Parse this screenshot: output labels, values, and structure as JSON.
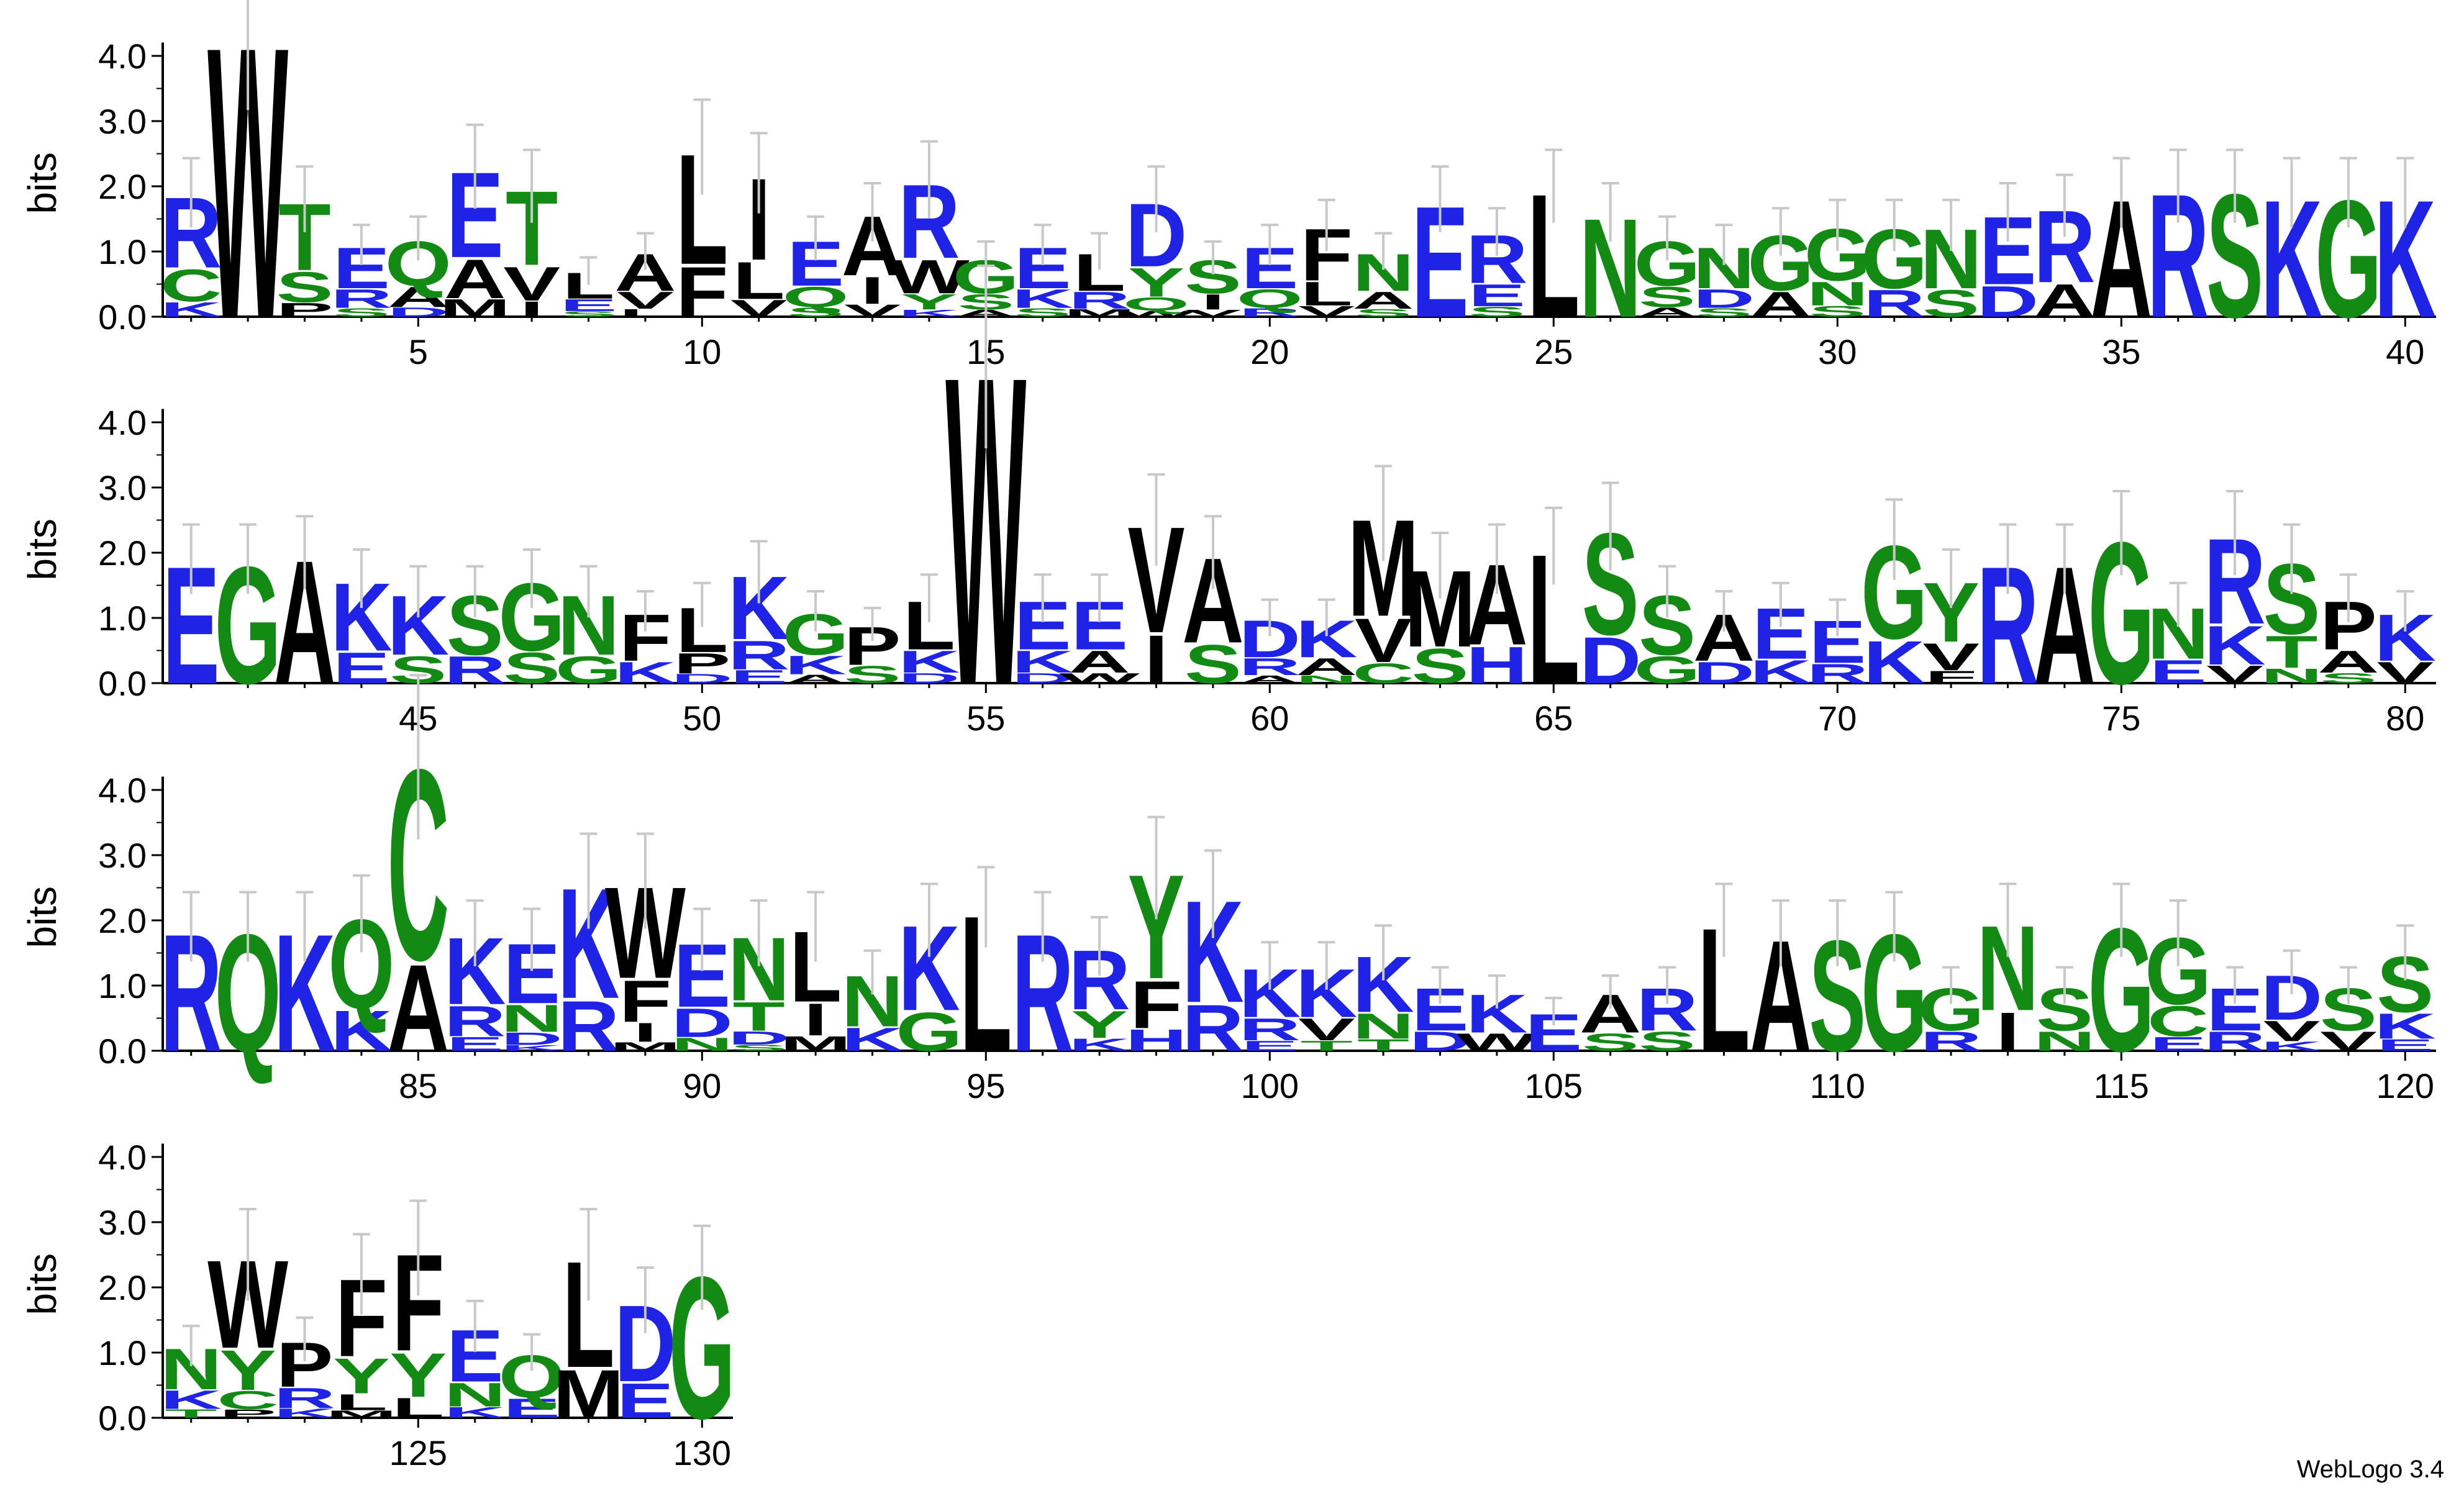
{
  "chart_data": {
    "type": "sequence-logo",
    "ylabel": "bits",
    "ylim": [
      0,
      4.3
    ],
    "yticks": [
      "0.0",
      "1.0",
      "2.0",
      "3.0",
      "4.0"
    ],
    "colors": {
      "hydrophilic_blue": "#1f23e6",
      "polar_green": "#138a13",
      "hydrophobic_black": "#000000",
      "errorbar": "#c8c8c8"
    },
    "rows": [
      {
        "start": 1,
        "end": 40,
        "ticks": [
          5,
          10,
          15,
          20,
          25,
          30,
          35,
          40
        ]
      },
      {
        "start": 41,
        "end": 80,
        "ticks": [
          45,
          50,
          55,
          60,
          65,
          70,
          75,
          80
        ]
      },
      {
        "start": 81,
        "end": 120,
        "ticks": [
          85,
          90,
          95,
          100,
          105,
          110,
          115,
          120
        ]
      },
      {
        "start": 121,
        "end": 130,
        "ticks": [
          125,
          130
        ]
      }
    ],
    "positions": [
      {
        "p": 1,
        "t": 1.9,
        "s": [
          "K",
          "C",
          "R"
        ]
      },
      {
        "p": 2,
        "t": 4.4,
        "s": [
          "W"
        ]
      },
      {
        "p": 3,
        "t": 1.8,
        "s": [
          "P",
          "S",
          "T"
        ]
      },
      {
        "p": 4,
        "t": 1.1,
        "s": [
          "S",
          "R",
          "E"
        ]
      },
      {
        "p": 5,
        "t": 1.2,
        "s": [
          "D",
          "A",
          "Q"
        ]
      },
      {
        "p": 6,
        "t": 2.3,
        "s": [
          "M",
          "A",
          "E"
        ]
      },
      {
        "p": 7,
        "t": 2.0,
        "s": [
          "I",
          "V",
          "T"
        ]
      },
      {
        "p": 8,
        "t": 0.7,
        "s": [
          "S",
          "E",
          "L"
        ]
      },
      {
        "p": 9,
        "t": 1.0,
        "s": [
          "L",
          "V",
          "A"
        ]
      },
      {
        "p": 10,
        "t": 2.6,
        "s": [
          "F",
          "L"
        ]
      },
      {
        "p": 11,
        "t": 2.2,
        "s": [
          "V",
          "L",
          "I"
        ]
      },
      {
        "p": 12,
        "t": 1.2,
        "s": [
          "S",
          "Q",
          "E"
        ]
      },
      {
        "p": 13,
        "t": 1.6,
        "s": [
          "V",
          "I",
          "A"
        ]
      },
      {
        "p": 14,
        "t": 2.1,
        "s": [
          "K",
          "Y",
          "W",
          "R"
        ]
      },
      {
        "p": 15,
        "t": 0.9,
        "s": [
          "A",
          "S",
          "G"
        ]
      },
      {
        "p": 16,
        "t": 1.1,
        "s": [
          "S",
          "K",
          "E"
        ]
      },
      {
        "p": 17,
        "t": 1.0,
        "s": [
          "M",
          "R",
          "L"
        ]
      },
      {
        "p": 18,
        "t": 1.8,
        "s": [
          "W",
          "Q",
          "Y",
          "D"
        ]
      },
      {
        "p": 19,
        "t": 0.9,
        "s": [
          "V",
          "I",
          "S"
        ]
      },
      {
        "p": 20,
        "t": 1.1,
        "s": [
          "R",
          "Q",
          "E"
        ]
      },
      {
        "p": 21,
        "t": 1.4,
        "s": [
          "V",
          "L",
          "F"
        ]
      },
      {
        "p": 22,
        "t": 1.0,
        "s": [
          "S",
          "A",
          "N"
        ]
      },
      {
        "p": 23,
        "t": 1.8,
        "s": [
          "E"
        ]
      },
      {
        "p": 24,
        "t": 1.3,
        "s": [
          "S",
          "E",
          "R"
        ]
      },
      {
        "p": 25,
        "t": 2.0,
        "s": [
          "L"
        ]
      },
      {
        "p": 26,
        "t": 1.6,
        "s": [
          "N"
        ]
      },
      {
        "p": 27,
        "t": 1.2,
        "s": [
          "A",
          "S",
          "G"
        ]
      },
      {
        "p": 28,
        "t": 1.1,
        "s": [
          "S",
          "D",
          "N"
        ]
      },
      {
        "p": 29,
        "t": 1.3,
        "s": [
          "A",
          "G"
        ]
      },
      {
        "p": 30,
        "t": 1.4,
        "s": [
          "S",
          "N",
          "G"
        ]
      },
      {
        "p": 31,
        "t": 1.4,
        "s": [
          "R",
          "G"
        ]
      },
      {
        "p": 32,
        "t": 1.4,
        "s": [
          "S",
          "N"
        ]
      },
      {
        "p": 33,
        "t": 1.6,
        "s": [
          "D",
          "E"
        ]
      },
      {
        "p": 34,
        "t": 1.7,
        "s": [
          "A",
          "R"
        ]
      },
      {
        "p": 35,
        "t": 1.9,
        "s": [
          "A"
        ]
      },
      {
        "p": 36,
        "t": 2.0,
        "s": [
          "R"
        ]
      },
      {
        "p": 37,
        "t": 2.0,
        "s": [
          "S"
        ]
      },
      {
        "p": 38,
        "t": 1.9,
        "s": [
          "K"
        ]
      },
      {
        "p": 39,
        "t": 1.9,
        "s": [
          "G"
        ]
      },
      {
        "p": 40,
        "t": 1.9,
        "s": [
          "K"
        ]
      },
      {
        "p": 41,
        "t": 1.9,
        "s": [
          "E"
        ]
      },
      {
        "p": 42,
        "t": 1.9,
        "s": [
          "G"
        ]
      },
      {
        "p": 43,
        "t": 2.0,
        "s": [
          "A"
        ]
      },
      {
        "p": 44,
        "t": 1.6,
        "s": [
          "E",
          "K"
        ]
      },
      {
        "p": 45,
        "t": 1.4,
        "s": [
          "S",
          "K"
        ]
      },
      {
        "p": 46,
        "t": 1.4,
        "s": [
          "R",
          "S"
        ]
      },
      {
        "p": 47,
        "t": 1.6,
        "s": [
          "S",
          "G"
        ]
      },
      {
        "p": 48,
        "t": 1.4,
        "s": [
          "G",
          "N"
        ]
      },
      {
        "p": 49,
        "t": 1.1,
        "s": [
          "K",
          "F"
        ]
      },
      {
        "p": 50,
        "t": 1.2,
        "s": [
          "D",
          "P",
          "L"
        ]
      },
      {
        "p": 51,
        "t": 1.7,
        "s": [
          "E",
          "R",
          "K"
        ]
      },
      {
        "p": 52,
        "t": 1.1,
        "s": [
          "A",
          "K",
          "G"
        ]
      },
      {
        "p": 53,
        "t": 0.9,
        "s": [
          "S",
          "P"
        ]
      },
      {
        "p": 54,
        "t": 1.3,
        "s": [
          "D",
          "K",
          "L"
        ]
      },
      {
        "p": 55,
        "t": 5.0,
        "s": [
          "W"
        ]
      },
      {
        "p": 56,
        "t": 1.3,
        "s": [
          "D",
          "K",
          "E"
        ]
      },
      {
        "p": 57,
        "t": 1.3,
        "s": [
          "W",
          "A",
          "E"
        ]
      },
      {
        "p": 58,
        "t": 2.5,
        "s": [
          "I",
          "V"
        ]
      },
      {
        "p": 59,
        "t": 2.0,
        "s": [
          "S",
          "A"
        ]
      },
      {
        "p": 60,
        "t": 1.0,
        "s": [
          "A",
          "R",
          "D"
        ]
      },
      {
        "p": 61,
        "t": 1.0,
        "s": [
          "N",
          "A",
          "K"
        ]
      },
      {
        "p": 62,
        "t": 2.6,
        "s": [
          "C",
          "V",
          "M"
        ]
      },
      {
        "p": 63,
        "t": 1.8,
        "s": [
          "S",
          "M"
        ]
      },
      {
        "p": 64,
        "t": 1.9,
        "s": [
          "H",
          "A"
        ]
      },
      {
        "p": 65,
        "t": 2.1,
        "s": [
          "L"
        ]
      },
      {
        "p": 66,
        "t": 2.4,
        "s": [
          "D",
          "S"
        ]
      },
      {
        "p": 67,
        "t": 1.4,
        "s": [
          "G",
          "S"
        ]
      },
      {
        "p": 68,
        "t": 1.1,
        "s": [
          "D",
          "A"
        ]
      },
      {
        "p": 69,
        "t": 1.2,
        "s": [
          "K",
          "E"
        ]
      },
      {
        "p": 70,
        "t": 1.0,
        "s": [
          "R",
          "E"
        ]
      },
      {
        "p": 71,
        "t": 2.2,
        "s": [
          "K",
          "G"
        ]
      },
      {
        "p": 72,
        "t": 1.6,
        "s": [
          "F",
          "V",
          "Y"
        ]
      },
      {
        "p": 73,
        "t": 1.9,
        "s": [
          "R"
        ]
      },
      {
        "p": 74,
        "t": 1.9,
        "s": [
          "A"
        ]
      },
      {
        "p": 75,
        "t": 2.3,
        "s": [
          "G"
        ]
      },
      {
        "p": 76,
        "t": 1.2,
        "s": [
          "E",
          "N"
        ]
      },
      {
        "p": 77,
        "t": 2.3,
        "s": [
          "V",
          "K",
          "R"
        ]
      },
      {
        "p": 78,
        "t": 1.9,
        "s": [
          "N",
          "T",
          "S"
        ]
      },
      {
        "p": 79,
        "t": 1.3,
        "s": [
          "S",
          "A",
          "P"
        ]
      },
      {
        "p": 80,
        "t": 1.1,
        "s": [
          "V",
          "K"
        ]
      },
      {
        "p": 81,
        "t": 1.9,
        "s": [
          "R"
        ]
      },
      {
        "p": 82,
        "t": 1.9,
        "s": [
          "Q"
        ]
      },
      {
        "p": 83,
        "t": 1.9,
        "s": [
          "K"
        ]
      },
      {
        "p": 84,
        "t": 2.1,
        "s": [
          "K",
          "Q"
        ]
      },
      {
        "p": 85,
        "t": 4.5,
        "s": [
          "A",
          "C"
        ]
      },
      {
        "p": 86,
        "t": 1.8,
        "s": [
          "E",
          "R",
          "K"
        ]
      },
      {
        "p": 87,
        "t": 1.7,
        "s": [
          "K",
          "D",
          "N",
          "E"
        ]
      },
      {
        "p": 88,
        "t": 2.6,
        "s": [
          "R",
          "K"
        ]
      },
      {
        "p": 89,
        "t": 2.6,
        "s": [
          "M",
          "I",
          "F",
          "W"
        ]
      },
      {
        "p": 90,
        "t": 1.7,
        "s": [
          "N",
          "D",
          "E"
        ]
      },
      {
        "p": 91,
        "t": 1.8,
        "s": [
          "S",
          "D",
          "T",
          "N"
        ]
      },
      {
        "p": 92,
        "t": 1.9,
        "s": [
          "M",
          "I",
          "L"
        ]
      },
      {
        "p": 93,
        "t": 1.2,
        "s": [
          "K",
          "N"
        ]
      },
      {
        "p": 94,
        "t": 2.0,
        "s": [
          "G",
          "K"
        ]
      },
      {
        "p": 95,
        "t": 2.2,
        "s": [
          "L"
        ]
      },
      {
        "p": 96,
        "t": 1.9,
        "s": [
          "R"
        ]
      },
      {
        "p": 97,
        "t": 1.6,
        "s": [
          "K",
          "Y",
          "R"
        ]
      },
      {
        "p": 98,
        "t": 2.8,
        "s": [
          "H",
          "F",
          "Y"
        ]
      },
      {
        "p": 99,
        "t": 2.4,
        "s": [
          "R",
          "K"
        ]
      },
      {
        "p": 100,
        "t": 1.3,
        "s": [
          "E",
          "R",
          "K"
        ]
      },
      {
        "p": 101,
        "t": 1.3,
        "s": [
          "T",
          "V",
          "K"
        ]
      },
      {
        "p": 102,
        "t": 1.5,
        "s": [
          "T",
          "N",
          "K"
        ]
      },
      {
        "p": 103,
        "t": 1.0,
        "s": [
          "D",
          "E"
        ]
      },
      {
        "p": 104,
        "t": 0.9,
        "s": [
          "W",
          "K"
        ]
      },
      {
        "p": 105,
        "t": 0.6,
        "s": [
          "E"
        ]
      },
      {
        "p": 106,
        "t": 0.9,
        "s": [
          "S",
          "A"
        ]
      },
      {
        "p": 107,
        "t": 1.0,
        "s": [
          "S",
          "R"
        ]
      },
      {
        "p": 108,
        "t": 2.0,
        "s": [
          "L"
        ]
      },
      {
        "p": 109,
        "t": 1.8,
        "s": [
          "A"
        ]
      },
      {
        "p": 110,
        "t": 1.8,
        "s": [
          "S"
        ]
      },
      {
        "p": 111,
        "t": 1.9,
        "s": [
          "G"
        ]
      },
      {
        "p": 112,
        "t": 1.0,
        "s": [
          "R",
          "G"
        ]
      },
      {
        "p": 113,
        "t": 2.0,
        "s": [
          "I",
          "N"
        ]
      },
      {
        "p": 114,
        "t": 1.0,
        "s": [
          "N",
          "S"
        ]
      },
      {
        "p": 115,
        "t": 2.0,
        "s": [
          "G"
        ]
      },
      {
        "p": 116,
        "t": 1.8,
        "s": [
          "E",
          "C",
          "G"
        ]
      },
      {
        "p": 117,
        "t": 1.0,
        "s": [
          "R",
          "E"
        ]
      },
      {
        "p": 118,
        "t": 1.2,
        "s": [
          "K",
          "V",
          "D"
        ]
      },
      {
        "p": 119,
        "t": 1.0,
        "s": [
          "V",
          "S"
        ]
      },
      {
        "p": 120,
        "t": 1.5,
        "s": [
          "E",
          "K",
          "S"
        ]
      },
      {
        "p": 121,
        "t": 1.1,
        "s": [
          "T",
          "K",
          "N"
        ]
      },
      {
        "p": 122,
        "t": 2.5,
        "s": [
          "P",
          "C",
          "Y",
          "W"
        ]
      },
      {
        "p": 123,
        "t": 1.2,
        "s": [
          "K",
          "R",
          "P"
        ]
      },
      {
        "p": 124,
        "t": 2.2,
        "s": [
          "M",
          "L",
          "Y",
          "F"
        ]
      },
      {
        "p": 125,
        "t": 2.6,
        "s": [
          "L",
          "Y",
          "F"
        ]
      },
      {
        "p": 126,
        "t": 1.4,
        "s": [
          "K",
          "N",
          "E"
        ]
      },
      {
        "p": 127,
        "t": 1.0,
        "s": [
          "E",
          "Q"
        ]
      },
      {
        "p": 128,
        "t": 2.5,
        "s": [
          "M",
          "L"
        ]
      },
      {
        "p": 129,
        "t": 1.8,
        "s": [
          "E",
          "D"
        ]
      },
      {
        "p": 130,
        "t": 2.3,
        "s": [
          "G"
        ]
      }
    ]
  },
  "credit": "WebLogo 3.4"
}
